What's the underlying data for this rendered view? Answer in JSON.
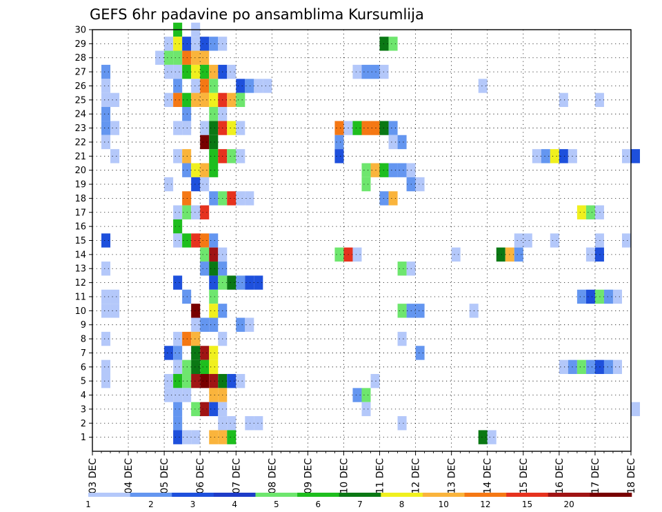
{
  "chart_data": {
    "type": "heatmap",
    "title": "GEFS 6hr padavine po ansamblima Kursumlija",
    "y_labels": [
      "1",
      "2",
      "3",
      "4",
      "5",
      "6",
      "7",
      "8",
      "9",
      "10",
      "11",
      "12",
      "13",
      "14",
      "15",
      "16",
      "17",
      "18",
      "19",
      "20",
      "21",
      "22",
      "23",
      "24",
      "25",
      "26",
      "27",
      "28",
      "29",
      "30"
    ],
    "x_labels": [
      "03 DEC",
      "04 DEC",
      "05 DEC",
      "06 DEC",
      "07 DEC",
      "08 DEC",
      "09 DEC",
      "10 DEC",
      "11 DEC",
      "12 DEC",
      "13 DEC",
      "14 DEC",
      "15 DEC",
      "16 DEC",
      "17 DEC",
      "18 DEC"
    ],
    "x_range_days": [
      0,
      15
    ],
    "steps_per_day": 4,
    "y_range": [
      0,
      30
    ],
    "grid": true,
    "legend_placement": "bottom",
    "legend": {
      "labels": [
        "1",
        "2",
        "3",
        "4",
        "5",
        "6",
        "7",
        "8",
        "10",
        "12",
        "15",
        "20"
      ],
      "colors": [
        "#b4c8fa",
        "#6496f0",
        "#1e50dc",
        "#1e3cc8",
        "#6ee66e",
        "#1ebe1e",
        "#0a7814",
        "#f0f01e",
        "#fab43c",
        "#f57814",
        "#e6321e",
        "#a01414",
        "#780000"
      ]
    },
    "cells_note": "each cell: [member, 6h step index from 03 DEC 00Z, color index into legend.colors]",
    "cells": [
      [
        30,
        9,
        5
      ],
      [
        30,
        11,
        0
      ],
      [
        29,
        8,
        0
      ],
      [
        29,
        9,
        7
      ],
      [
        29,
        10,
        2
      ],
      [
        29,
        11,
        0
      ],
      [
        29,
        12,
        2
      ],
      [
        29,
        13,
        1
      ],
      [
        29,
        14,
        0
      ],
      [
        29,
        32,
        6
      ],
      [
        29,
        33,
        4
      ],
      [
        28,
        7,
        0
      ],
      [
        28,
        8,
        4
      ],
      [
        28,
        9,
        4
      ],
      [
        28,
        10,
        9
      ],
      [
        28,
        11,
        8
      ],
      [
        28,
        12,
        8
      ],
      [
        27,
        1,
        1
      ],
      [
        27,
        8,
        0
      ],
      [
        27,
        9,
        0
      ],
      [
        27,
        10,
        5
      ],
      [
        27,
        11,
        7
      ],
      [
        27,
        12,
        5
      ],
      [
        27,
        13,
        8
      ],
      [
        27,
        14,
        2
      ],
      [
        27,
        15,
        0
      ],
      [
        27,
        29,
        0
      ],
      [
        27,
        30,
        1
      ],
      [
        27,
        31,
        1
      ],
      [
        27,
        32,
        0
      ],
      [
        26,
        1,
        0
      ],
      [
        26,
        9,
        1
      ],
      [
        26,
        11,
        0
      ],
      [
        26,
        12,
        9
      ],
      [
        26,
        13,
        4
      ],
      [
        26,
        16,
        2
      ],
      [
        26,
        17,
        1
      ],
      [
        26,
        18,
        0
      ],
      [
        26,
        19,
        0
      ],
      [
        26,
        43,
        0
      ],
      [
        25,
        1,
        0
      ],
      [
        25,
        2,
        0
      ],
      [
        25,
        8,
        0
      ],
      [
        25,
        9,
        9
      ],
      [
        25,
        10,
        5
      ],
      [
        25,
        11,
        8
      ],
      [
        25,
        12,
        8
      ],
      [
        25,
        13,
        7
      ],
      [
        25,
        14,
        10
      ],
      [
        25,
        15,
        8
      ],
      [
        25,
        16,
        4
      ],
      [
        25,
        52,
        0
      ],
      [
        25,
        56,
        0
      ],
      [
        24,
        1,
        1
      ],
      [
        24,
        10,
        1
      ],
      [
        24,
        13,
        4
      ],
      [
        24,
        14,
        0
      ],
      [
        23,
        1,
        1
      ],
      [
        23,
        2,
        0
      ],
      [
        23,
        9,
        0
      ],
      [
        23,
        10,
        0
      ],
      [
        23,
        12,
        0
      ],
      [
        23,
        13,
        6
      ],
      [
        23,
        14,
        10
      ],
      [
        23,
        15,
        7
      ],
      [
        23,
        16,
        0
      ],
      [
        23,
        27,
        9
      ],
      [
        23,
        28,
        0
      ],
      [
        23,
        29,
        5
      ],
      [
        23,
        30,
        9
      ],
      [
        23,
        31,
        9
      ],
      [
        23,
        32,
        6
      ],
      [
        23,
        33,
        1
      ],
      [
        22,
        1,
        0
      ],
      [
        22,
        12,
        12
      ],
      [
        22,
        13,
        6
      ],
      [
        22,
        27,
        1
      ],
      [
        22,
        33,
        0
      ],
      [
        22,
        34,
        1
      ],
      [
        21,
        2,
        0
      ],
      [
        21,
        9,
        0
      ],
      [
        21,
        10,
        8
      ],
      [
        21,
        13,
        5
      ],
      [
        21,
        14,
        10
      ],
      [
        21,
        15,
        4
      ],
      [
        21,
        16,
        0
      ],
      [
        21,
        27,
        2
      ],
      [
        21,
        49,
        0
      ],
      [
        21,
        50,
        1
      ],
      [
        21,
        51,
        7
      ],
      [
        21,
        52,
        2
      ],
      [
        21,
        53,
        0
      ],
      [
        21,
        59,
        0
      ],
      [
        21,
        60,
        2
      ],
      [
        20,
        10,
        1
      ],
      [
        20,
        11,
        7
      ],
      [
        20,
        12,
        8
      ],
      [
        20,
        13,
        5
      ],
      [
        20,
        30,
        4
      ],
      [
        20,
        31,
        8
      ],
      [
        20,
        32,
        5
      ],
      [
        20,
        33,
        1
      ],
      [
        20,
        34,
        1
      ],
      [
        20,
        35,
        0
      ],
      [
        19,
        8,
        0
      ],
      [
        19,
        11,
        2
      ],
      [
        19,
        12,
        0
      ],
      [
        19,
        30,
        4
      ],
      [
        19,
        35,
        1
      ],
      [
        19,
        36,
        0
      ],
      [
        18,
        10,
        9
      ],
      [
        18,
        13,
        1
      ],
      [
        18,
        14,
        4
      ],
      [
        18,
        15,
        10
      ],
      [
        18,
        16,
        0
      ],
      [
        18,
        17,
        0
      ],
      [
        18,
        32,
        1
      ],
      [
        18,
        33,
        8
      ],
      [
        17,
        9,
        0
      ],
      [
        17,
        10,
        4
      ],
      [
        17,
        11,
        0
      ],
      [
        17,
        12,
        10
      ],
      [
        17,
        54,
        7
      ],
      [
        17,
        55,
        4
      ],
      [
        17,
        56,
        0
      ],
      [
        16,
        9,
        5
      ],
      [
        15,
        1,
        2
      ],
      [
        15,
        9,
        0
      ],
      [
        15,
        10,
        5
      ],
      [
        15,
        11,
        10
      ],
      [
        15,
        12,
        9
      ],
      [
        15,
        13,
        1
      ],
      [
        15,
        47,
        0
      ],
      [
        15,
        48,
        0
      ],
      [
        15,
        51,
        0
      ],
      [
        15,
        56,
        0
      ],
      [
        15,
        59,
        0
      ],
      [
        14,
        12,
        4
      ],
      [
        14,
        13,
        11
      ],
      [
        14,
        14,
        0
      ],
      [
        14,
        27,
        4
      ],
      [
        14,
        28,
        10
      ],
      [
        14,
        29,
        0
      ],
      [
        14,
        40,
        0
      ],
      [
        14,
        45,
        6
      ],
      [
        14,
        46,
        8
      ],
      [
        14,
        47,
        1
      ],
      [
        14,
        55,
        0
      ],
      [
        14,
        56,
        2
      ],
      [
        13,
        1,
        0
      ],
      [
        13,
        12,
        1
      ],
      [
        13,
        13,
        6
      ],
      [
        13,
        14,
        1
      ],
      [
        13,
        34,
        4
      ],
      [
        13,
        35,
        0
      ],
      [
        12,
        9,
        2
      ],
      [
        12,
        13,
        2
      ],
      [
        12,
        14,
        4
      ],
      [
        12,
        15,
        6
      ],
      [
        12,
        16,
        1
      ],
      [
        12,
        17,
        2
      ],
      [
        12,
        18,
        2
      ],
      [
        11,
        1,
        0
      ],
      [
        11,
        2,
        0
      ],
      [
        11,
        10,
        1
      ],
      [
        11,
        13,
        4
      ],
      [
        11,
        54,
        1
      ],
      [
        11,
        55,
        2
      ],
      [
        11,
        56,
        4
      ],
      [
        11,
        57,
        1
      ],
      [
        11,
        58,
        0
      ],
      [
        10,
        1,
        0
      ],
      [
        10,
        2,
        0
      ],
      [
        10,
        11,
        12
      ],
      [
        10,
        13,
        7
      ],
      [
        10,
        14,
        1
      ],
      [
        10,
        34,
        4
      ],
      [
        10,
        35,
        1
      ],
      [
        10,
        36,
        1
      ],
      [
        10,
        42,
        0
      ],
      [
        9,
        11,
        0
      ],
      [
        9,
        12,
        1
      ],
      [
        9,
        13,
        1
      ],
      [
        9,
        16,
        1
      ],
      [
        9,
        17,
        0
      ],
      [
        8,
        1,
        0
      ],
      [
        8,
        9,
        0
      ],
      [
        8,
        10,
        9
      ],
      [
        8,
        11,
        8
      ],
      [
        8,
        14,
        0
      ],
      [
        8,
        34,
        0
      ],
      [
        7,
        8,
        2
      ],
      [
        7,
        9,
        1
      ],
      [
        7,
        11,
        6
      ],
      [
        7,
        12,
        11
      ],
      [
        7,
        13,
        7
      ],
      [
        7,
        36,
        1
      ],
      [
        6,
        1,
        0
      ],
      [
        6,
        9,
        0
      ],
      [
        6,
        10,
        4
      ],
      [
        6,
        11,
        6
      ],
      [
        6,
        12,
        5
      ],
      [
        6,
        13,
        7
      ],
      [
        6,
        52,
        0
      ],
      [
        6,
        53,
        1
      ],
      [
        6,
        54,
        4
      ],
      [
        6,
        55,
        1
      ],
      [
        6,
        56,
        2
      ],
      [
        6,
        57,
        1
      ],
      [
        6,
        58,
        0
      ],
      [
        5,
        1,
        0
      ],
      [
        5,
        8,
        0
      ],
      [
        5,
        9,
        5
      ],
      [
        5,
        10,
        4
      ],
      [
        5,
        11,
        11
      ],
      [
        5,
        12,
        12
      ],
      [
        5,
        13,
        11
      ],
      [
        5,
        14,
        6
      ],
      [
        5,
        15,
        2
      ],
      [
        5,
        16,
        0
      ],
      [
        5,
        31,
        0
      ],
      [
        4,
        8,
        0
      ],
      [
        4,
        9,
        0
      ],
      [
        4,
        10,
        0
      ],
      [
        4,
        13,
        8
      ],
      [
        4,
        14,
        8
      ],
      [
        4,
        29,
        1
      ],
      [
        4,
        30,
        4
      ],
      [
        3,
        9,
        1
      ],
      [
        3,
        11,
        4
      ],
      [
        3,
        12,
        11
      ],
      [
        3,
        13,
        2
      ],
      [
        3,
        14,
        0
      ],
      [
        3,
        30,
        0
      ],
      [
        3,
        60,
        0
      ],
      [
        2,
        9,
        1
      ],
      [
        2,
        14,
        0
      ],
      [
        2,
        15,
        0
      ],
      [
        2,
        17,
        0
      ],
      [
        2,
        18,
        0
      ],
      [
        2,
        34,
        0
      ],
      [
        1,
        9,
        2
      ],
      [
        1,
        10,
        0
      ],
      [
        1,
        11,
        0
      ],
      [
        1,
        13,
        8
      ],
      [
        1,
        14,
        8
      ],
      [
        1,
        15,
        5
      ],
      [
        1,
        43,
        6
      ],
      [
        1,
        44,
        0
      ]
    ]
  }
}
